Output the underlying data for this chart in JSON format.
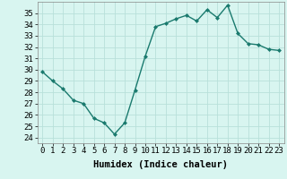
{
  "x": [
    0,
    1,
    2,
    3,
    4,
    5,
    6,
    7,
    8,
    9,
    10,
    11,
    12,
    13,
    14,
    15,
    16,
    17,
    18,
    19,
    20,
    21,
    22,
    23
  ],
  "y": [
    29.8,
    29.0,
    28.3,
    27.3,
    27.0,
    25.7,
    25.3,
    24.3,
    25.3,
    28.2,
    31.2,
    33.8,
    34.1,
    34.5,
    34.8,
    34.3,
    35.3,
    34.6,
    35.7,
    33.2,
    32.3,
    32.2,
    31.8,
    31.7
  ],
  "line_color": "#1a7a6e",
  "marker": "D",
  "markersize": 2.0,
  "linewidth": 1.0,
  "bg_color": "#d8f5f0",
  "grid_color": "#b8e0da",
  "xlabel": "Humidex (Indice chaleur)",
  "xlim": [
    -0.5,
    23.5
  ],
  "ylim": [
    23.5,
    36.0
  ],
  "xticks": [
    0,
    1,
    2,
    3,
    4,
    5,
    6,
    7,
    8,
    9,
    10,
    11,
    12,
    13,
    14,
    15,
    16,
    17,
    18,
    19,
    20,
    21,
    22,
    23
  ],
  "yticks": [
    24,
    25,
    26,
    27,
    28,
    29,
    30,
    31,
    32,
    33,
    34,
    35
  ],
  "xlabel_fontsize": 7.5,
  "tick_fontsize": 6.5
}
